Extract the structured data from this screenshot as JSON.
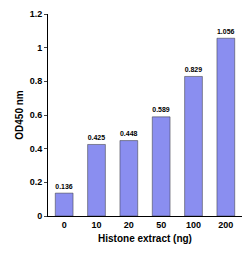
{
  "chart_data": {
    "type": "bar",
    "x_label": "Histone extract (ng)",
    "y_label": "OD450 nm",
    "categories": [
      "0",
      "10",
      "20",
      "50",
      "100",
      "200"
    ],
    "values": [
      0.136,
      0.425,
      0.448,
      0.589,
      0.829,
      1.056
    ],
    "color": "#8a8ef0",
    "ylim": [
      0,
      1.2
    ],
    "yticks": [
      0,
      0.2,
      0.4,
      0.6,
      0.8,
      1,
      1.2
    ],
    "grid": false,
    "data_labels": true
  }
}
